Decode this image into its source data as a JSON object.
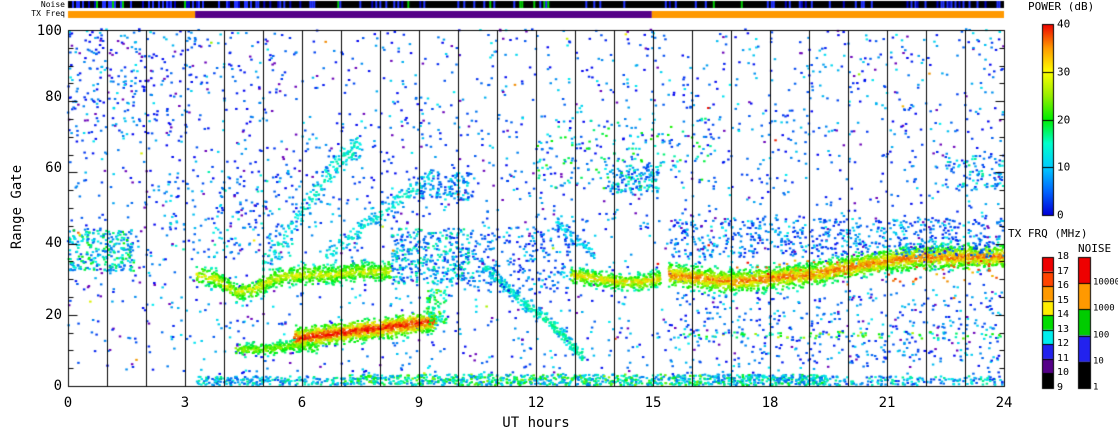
{
  "labels": {
    "noise_strip": "Noise",
    "txfreq_strip": "TX Freq",
    "power_title": "POWER (dB)",
    "txfrq_title": "TX FRQ (MHz)",
    "noise_title": "NOISE",
    "x_title": "UT hours",
    "y_title": "Range Gate"
  },
  "chart_data": {
    "type": "scatter",
    "subtype": "range-time-intensity",
    "xlabel": "UT hours",
    "ylabel": "Range Gate",
    "xlim": [
      0,
      24
    ],
    "ylim": [
      0,
      100
    ],
    "grid": "vertical line at every UT hour",
    "x_ticks": [
      "0",
      "3",
      "6",
      "9",
      "12",
      "15",
      "18",
      "21",
      "24"
    ],
    "y_ticks": [
      "100",
      "80",
      "60",
      "40",
      "20",
      "0"
    ],
    "strips": {
      "noise": {
        "bg": "#000000",
        "tick_colors": [
          "#2233ff",
          "#0000bb",
          "#00cc00"
        ],
        "segments": [
          {
            "t": [
              0,
              4.7
            ],
            "density": 0.45
          },
          {
            "t": [
              4.7,
              12.7
            ],
            "density": 0.22
          },
          {
            "t": [
              12.7,
              15.2
            ],
            "density": 0.1
          },
          {
            "t": [
              15.2,
              21.5
            ],
            "density": 0.13
          },
          {
            "t": [
              21.5,
              24
            ],
            "density": 0.38
          }
        ]
      },
      "tx_freq": {
        "segments": [
          {
            "t": [
              0,
              3.26
            ],
            "color": "#ff9900"
          },
          {
            "t": [
              3.26,
              14.97
            ],
            "color": "#550088"
          },
          {
            "t": [
              14.97,
              24
            ],
            "color": "#ff9900"
          }
        ]
      }
    },
    "colorbars": {
      "power": {
        "title": "POWER (dB)",
        "range": [
          0,
          40
        ],
        "ticks": [
          "40",
          "30",
          "20",
          "10",
          "0"
        ],
        "dividers": [
          10,
          20,
          30
        ],
        "gradient_bottom_to_top": [
          "#0000d8",
          "#0066ff",
          "#00ccff",
          "#00ffcc",
          "#00ee00",
          "#99ee00",
          "#ffff00",
          "#ff9900",
          "#ee0000"
        ]
      },
      "tx_frq": {
        "title": "TX FRQ (MHz)",
        "ticks": [
          "18",
          "17",
          "16",
          "15",
          "14",
          "13",
          "12",
          "11",
          "10",
          "9"
        ],
        "segments_top_to_bottom": [
          "#ee0000",
          "#ff4400",
          "#ff9900",
          "#ffee00",
          "#00dd00",
          "#00eeee",
          "#2222ee",
          "#550088",
          "#000000"
        ]
      },
      "noise": {
        "title": "NOISE",
        "ticks": [
          "10000",
          "1000",
          "100",
          "10",
          "1"
        ],
        "segments_top_to_bottom": [
          "#ee0000",
          "#ff9900",
          "#00cc00",
          "#2222ee",
          "#000000"
        ]
      }
    },
    "features": [
      {
        "name": "background-high",
        "kind": "box",
        "t": [
          0,
          24
        ],
        "g": [
          45,
          100
        ],
        "n": 1500,
        "p": [
          0,
          10
        ]
      },
      {
        "name": "background-low",
        "kind": "box",
        "t": [
          0,
          24
        ],
        "g": [
          3,
          45
        ],
        "n": 850,
        "p": [
          0,
          10
        ]
      },
      {
        "name": "early-cluster",
        "kind": "box",
        "t": [
          0,
          1.7
        ],
        "g": [
          32,
          44
        ],
        "n": 260,
        "p": [
          4,
          20
        ]
      },
      {
        "name": "early-high",
        "kind": "box",
        "t": [
          0,
          3.3
        ],
        "g": [
          70,
          100
        ],
        "n": 160,
        "p": [
          0,
          10
        ]
      },
      {
        "name": "early-mid",
        "kind": "box",
        "t": [
          2.5,
          6
        ],
        "g": [
          35,
          60
        ],
        "n": 150,
        "p": [
          1,
          13
        ]
      },
      {
        "name": "band-dip",
        "kind": "path",
        "pts": [
          [
            3.3,
            31
          ],
          [
            3.8,
            30
          ],
          [
            4.3,
            26
          ],
          [
            4.8,
            27
          ],
          [
            5.3,
            30
          ],
          [
            6.0,
            31
          ],
          [
            6.8,
            31
          ],
          [
            7.6,
            32
          ],
          [
            8.3,
            32
          ]
        ],
        "spread": 2.6,
        "n": 900,
        "p": [
          6,
          30
        ]
      },
      {
        "name": "band-dip-tail",
        "kind": "box",
        "t": [
          8.3,
          10.4
        ],
        "g": [
          28,
          44
        ],
        "n": 380,
        "p": [
          2,
          16
        ]
      },
      {
        "name": "plume-1",
        "kind": "path",
        "pts": [
          [
            5.0,
            34
          ],
          [
            5.6,
            42
          ],
          [
            6.2,
            52
          ],
          [
            6.9,
            62
          ],
          [
            7.5,
            68
          ]
        ],
        "spread": 4,
        "n": 200,
        "p": [
          1,
          13
        ]
      },
      {
        "name": "plume-2",
        "kind": "path",
        "pts": [
          [
            6.6,
            36
          ],
          [
            7.3,
            42
          ],
          [
            8.0,
            48
          ],
          [
            8.7,
            54
          ],
          [
            9.4,
            58
          ]
        ],
        "spread": 3,
        "n": 170,
        "p": [
          1,
          12
        ]
      },
      {
        "name": "low-band",
        "kind": "path",
        "pts": [
          [
            4.3,
            10
          ],
          [
            5.0,
            10
          ],
          [
            5.7,
            11
          ],
          [
            6.4,
            11
          ]
        ],
        "spread": 1.8,
        "n": 280,
        "p": [
          8,
          26
        ]
      },
      {
        "name": "strong-band",
        "kind": "path",
        "pts": [
          [
            5.8,
            13
          ],
          [
            6.5,
            14
          ],
          [
            7.2,
            15
          ],
          [
            8.0,
            16
          ],
          [
            8.7,
            17
          ],
          [
            9.4,
            18
          ]
        ],
        "spread": 2.8,
        "n": 1100,
        "p": [
          8,
          40
        ]
      },
      {
        "name": "strong-band-end",
        "kind": "box",
        "t": [
          9.2,
          9.7
        ],
        "g": [
          17,
          27
        ],
        "n": 90,
        "p": [
          10,
          26
        ]
      },
      {
        "name": "diagonal-1",
        "kind": "path",
        "pts": [
          [
            10.6,
            34
          ],
          [
            11.0,
            30
          ],
          [
            11.4,
            26
          ],
          [
            11.8,
            22
          ]
        ],
        "spread": 2,
        "n": 130,
        "p": [
          2,
          13
        ]
      },
      {
        "name": "diagonal-2",
        "kind": "path",
        "pts": [
          [
            11.7,
            23
          ],
          [
            12.2,
            19
          ],
          [
            12.7,
            14
          ],
          [
            13.2,
            8
          ]
        ],
        "spread": 2,
        "n": 170,
        "p": [
          3,
          15
        ]
      },
      {
        "name": "diagonal-3",
        "kind": "path",
        "pts": [
          [
            12.5,
            46
          ],
          [
            13.0,
            41
          ],
          [
            13.5,
            37
          ]
        ],
        "spread": 1.8,
        "n": 70,
        "p": [
          2,
          10
        ]
      },
      {
        "name": "mid-band",
        "kind": "path",
        "pts": [
          [
            12.9,
            31
          ],
          [
            13.5,
            30
          ],
          [
            14.1,
            29
          ],
          [
            14.7,
            29
          ],
          [
            15.2,
            30
          ]
        ],
        "spread": 2.2,
        "n": 460,
        "p": [
          6,
          32
        ]
      },
      {
        "name": "mid-gap-cloud",
        "kind": "box",
        "t": [
          10.4,
          12.9
        ],
        "g": [
          26,
          45
        ],
        "n": 190,
        "p": [
          1,
          10
        ]
      },
      {
        "name": "cluster-high-1",
        "kind": "box",
        "t": [
          9.0,
          10.3
        ],
        "g": [
          52,
          60
        ],
        "n": 110,
        "p": [
          2,
          12
        ]
      },
      {
        "name": "cluster-high-2",
        "kind": "box",
        "t": [
          13.8,
          15.2
        ],
        "g": [
          54,
          62
        ],
        "n": 130,
        "p": [
          2,
          14
        ]
      },
      {
        "name": "mid-high-green",
        "kind": "box",
        "t": [
          12,
          16.5
        ],
        "g": [
          55,
          75
        ],
        "n": 130,
        "p": [
          4,
          22
        ]
      },
      {
        "name": "main-band",
        "kind": "path",
        "pts": [
          [
            15.4,
            31
          ],
          [
            16.2,
            30
          ],
          [
            17.0,
            29
          ],
          [
            18.0,
            30
          ],
          [
            19.0,
            31
          ],
          [
            20.0,
            33
          ],
          [
            21.0,
            35
          ],
          [
            22.0,
            36
          ],
          [
            23.0,
            36
          ],
          [
            24.0,
            36
          ]
        ],
        "spread": 3.2,
        "n": 2500,
        "p": [
          5,
          36
        ]
      },
      {
        "name": "main-band-fringe",
        "kind": "box",
        "t": [
          15.4,
          24
        ],
        "g": [
          36,
          47
        ],
        "n": 600,
        "p": [
          1,
          11
        ]
      },
      {
        "name": "main-band-reds",
        "kind": "box",
        "t": [
          17,
          24
        ],
        "g": [
          29,
          35
        ],
        "n": 60,
        "p": [
          32,
          40
        ]
      },
      {
        "name": "row-gate14",
        "kind": "box",
        "t": [
          15.6,
          24
        ],
        "g": [
          13,
          15
        ],
        "n": 90,
        "p": [
          8,
          30
        ]
      },
      {
        "name": "below-main-sparse",
        "kind": "box",
        "t": [
          15.4,
          24
        ],
        "g": [
          5,
          26
        ],
        "n": 300,
        "p": [
          0,
          10
        ]
      },
      {
        "name": "right-high-cluster",
        "kind": "box",
        "t": [
          22.5,
          24
        ],
        "g": [
          55,
          65
        ],
        "n": 90,
        "p": [
          2,
          15
        ]
      },
      {
        "name": "bottom-row-1",
        "kind": "box",
        "t": [
          3.3,
          7
        ],
        "g": [
          0,
          2.5
        ],
        "n": 200,
        "p": [
          3,
          16
        ]
      },
      {
        "name": "bottom-row-2",
        "kind": "box",
        "t": [
          7,
          16.5
        ],
        "g": [
          0,
          3
        ],
        "n": 750,
        "p": [
          5,
          26
        ]
      },
      {
        "name": "bottom-row-3",
        "kind": "box",
        "t": [
          16.5,
          19.5
        ],
        "g": [
          0,
          3
        ],
        "n": 300,
        "p": [
          4,
          20
        ]
      },
      {
        "name": "bottom-row-4",
        "kind": "box",
        "t": [
          19.5,
          24
        ],
        "g": [
          0,
          2.5
        ],
        "n": 160,
        "p": [
          2,
          15
        ]
      },
      {
        "name": "outliers",
        "kind": "box",
        "t": [
          0,
          24
        ],
        "g": [
          3,
          100
        ],
        "n": 28,
        "p": [
          26,
          40
        ]
      }
    ]
  }
}
